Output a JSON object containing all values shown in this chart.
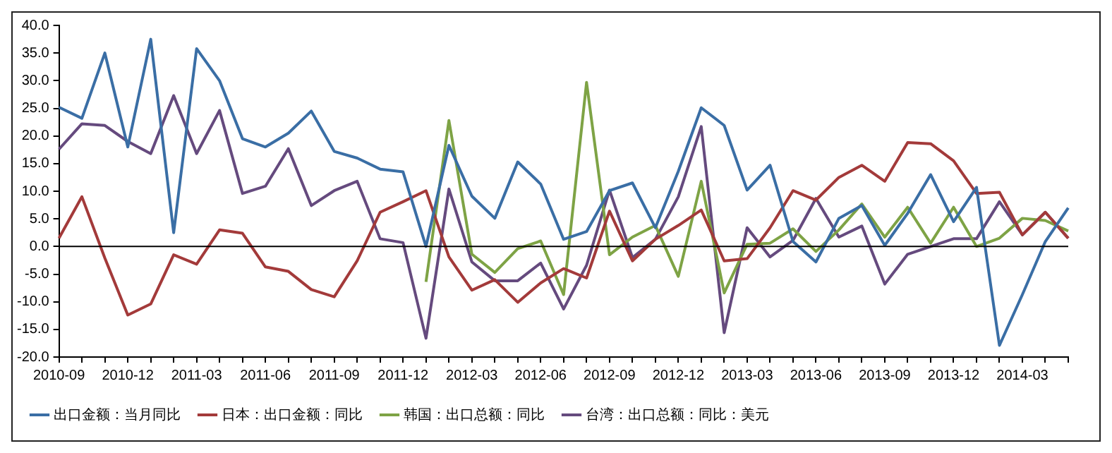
{
  "chart_data": {
    "type": "line",
    "categories": [
      "2010-09",
      null,
      null,
      "2010-12",
      null,
      null,
      "2011-03",
      null,
      null,
      "2011-06",
      null,
      null,
      "2011-09",
      null,
      null,
      "2011-12",
      null,
      null,
      "2012-03",
      null,
      null,
      "2012-06",
      null,
      null,
      "2012-09",
      null,
      null,
      "2012-12",
      null,
      null,
      "2013-03",
      null,
      null,
      "2013-06",
      null,
      null,
      "2013-09",
      null,
      null,
      "2013-12",
      null,
      null,
      "2014-03",
      null,
      null
    ],
    "series": [
      {
        "name": "出口金额：当月同比",
        "color": "#3a6ea5",
        "values": [
          25.2,
          23.2,
          35,
          18,
          37.5,
          2.5,
          35.8,
          30,
          19.5,
          18,
          20.5,
          24.5,
          17.2,
          16,
          14,
          13.5,
          0,
          18.3,
          9.1,
          5.1,
          15.3,
          11.3,
          1.3,
          2.7,
          10.1,
          11.5,
          3.4,
          13.6,
          25.1,
          21.9,
          10.2,
          14.7,
          0.9,
          -2.8,
          5.1,
          7.4,
          0.2,
          6,
          13,
          4.5,
          10.7,
          -17.9,
          -8.7,
          0.9,
          7
        ]
      },
      {
        "name": "日本：出口金额：同比",
        "color": "#a33a3a",
        "values": [
          1.5,
          9,
          -2.1,
          -12.4,
          -10.4,
          -1.5,
          -3.2,
          3,
          2.4,
          -3.7,
          -4.5,
          -7.8,
          -9.1,
          -2.6,
          6.2,
          8.1,
          10.1,
          -1.9,
          -7.9,
          -6,
          -10.1,
          -6.6,
          -4,
          -5.7,
          6.4,
          -2.6,
          1.3,
          3.8,
          6.6,
          -2.6,
          -2.2,
          3.4,
          10.1,
          8.4,
          12.5,
          14.7,
          11.8,
          18.8,
          18.6,
          15.5,
          9.6,
          9.8,
          2.1,
          6.2,
          1.5
        ]
      },
      {
        "name": "韩国：出口总额：同比",
        "color": "#7ea345",
        "values": [
          null,
          null,
          null,
          null,
          null,
          null,
          null,
          null,
          null,
          null,
          null,
          null,
          null,
          null,
          null,
          null,
          -6.4,
          22.8,
          -1.4,
          -4.7,
          -0.4,
          1,
          -8.7,
          29.7,
          -1.5,
          1.7,
          3.8,
          -5.4,
          11.8,
          -8.4,
          0.4,
          0.6,
          3.2,
          -0.9,
          3,
          7.7,
          1.7,
          7.1,
          0.6,
          7.1,
          0,
          1.5,
          5.1,
          4.7,
          2.8
        ]
      },
      {
        "name": "台湾：出口总额：同比：美元",
        "color": "#654a7e",
        "values": [
          17.6,
          22.2,
          21.9,
          19,
          16.8,
          27.3,
          16.8,
          24.6,
          9.6,
          10.9,
          17.7,
          7.4,
          10.1,
          11.8,
          1.4,
          0.7,
          -16.6,
          10.4,
          -2.8,
          -6.2,
          -6.2,
          -3,
          -11.3,
          -3.4,
          10.2,
          -2,
          1.3,
          9,
          21.7,
          -15.6,
          3.4,
          -1.9,
          1.1,
          8.7,
          1.7,
          3.7,
          -6.8,
          -1.4,
          0,
          1.4,
          1.4,
          8.1,
          2.1,
          6.2,
          1.5
        ]
      }
    ],
    "ylim": [
      -20,
      40
    ],
    "yticks": [
      {
        "value": -20,
        "label": "-20.0"
      },
      {
        "value": -15,
        "label": "-15.0"
      },
      {
        "value": -10,
        "label": "-10.0"
      },
      {
        "value": -5,
        "label": "-5.0"
      },
      {
        "value": 0,
        "label": "0.0"
      },
      {
        "value": 5,
        "label": "5.0"
      },
      {
        "value": 10,
        "label": "10.0"
      },
      {
        "value": 15,
        "label": "15.0"
      },
      {
        "value": 20,
        "label": "20.0"
      },
      {
        "value": 25,
        "label": "25.0"
      },
      {
        "value": 30,
        "label": "30.0"
      },
      {
        "value": 35,
        "label": "35.0"
      },
      {
        "value": 40,
        "label": "40.0"
      }
    ],
    "ref_lines": [
      {
        "axis": "y",
        "value": 0,
        "color": "#000000"
      }
    ],
    "grid": false,
    "legend": "bottom",
    "marker": "none",
    "line_style": "solid"
  }
}
